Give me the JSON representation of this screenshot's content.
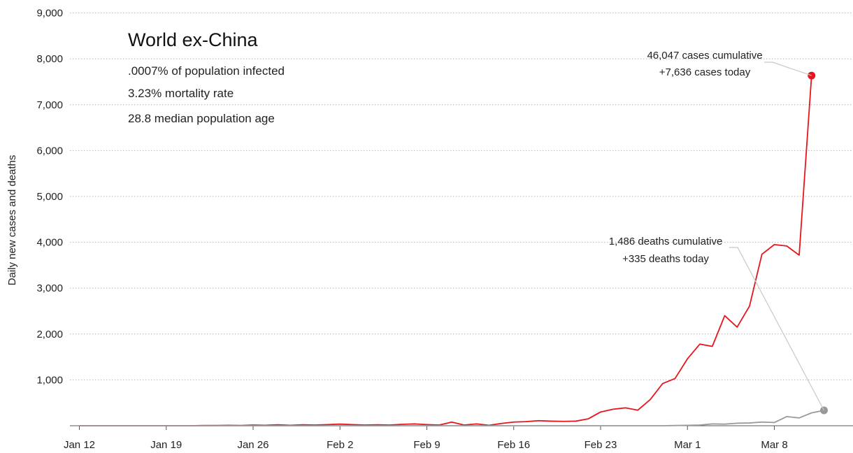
{
  "chart_data": {
    "type": "line",
    "title": "World ex-China",
    "subtitle_lines": [
      ".0007% of population infected",
      "3.23% mortality rate",
      "28.8 median population age"
    ],
    "xlabel": "",
    "ylabel": "Daily new cases and deaths",
    "ylim": [
      0,
      9000
    ],
    "y_ticks": [
      0,
      1000,
      2000,
      3000,
      4000,
      5000,
      6000,
      7000,
      8000,
      9000
    ],
    "y_tick_labels": [
      "",
      "1,000",
      "2,000",
      "3,000",
      "4,000",
      "5,000",
      "6,000",
      "7,000",
      "8,000",
      "9,000"
    ],
    "x_tick_labels": [
      "Jan 12",
      "Jan 19",
      "Jan 26",
      "Feb 2",
      "Feb 9",
      "Feb 16",
      "Feb 23",
      "Mar 1",
      "Mar 8"
    ],
    "x_tick_days": [
      0,
      7,
      14,
      21,
      28,
      35,
      42,
      49,
      56
    ],
    "grid": "horizontal dotted",
    "legend": "none",
    "series": [
      {
        "key": "cases",
        "color": "#e8141b",
        "values": [
          0,
          0,
          0,
          0,
          0,
          0,
          0,
          0,
          0,
          0,
          5,
          5,
          10,
          5,
          15,
          10,
          20,
          10,
          20,
          15,
          25,
          35,
          25,
          15,
          20,
          15,
          30,
          40,
          25,
          15,
          80,
          15,
          40,
          10,
          50,
          80,
          90,
          110,
          100,
          95,
          100,
          150,
          300,
          360,
          390,
          340,
          570,
          920,
          1030,
          1460,
          1780,
          1730,
          2400,
          2150,
          2610,
          3740,
          3950,
          3920,
          3720,
          7636
        ]
      },
      {
        "key": "deaths",
        "color": "#999999",
        "values": [
          0,
          0,
          0,
          0,
          0,
          0,
          0,
          0,
          0,
          0,
          0,
          0,
          0,
          0,
          0,
          0,
          0,
          0,
          0,
          0,
          0,
          0,
          0,
          0,
          0,
          0,
          0,
          0,
          0,
          0,
          0,
          0,
          0,
          0,
          0,
          0,
          0,
          0,
          0,
          0,
          0,
          0,
          0,
          0,
          0,
          0,
          0,
          0,
          5,
          10,
          15,
          40,
          35,
          55,
          60,
          80,
          70,
          200,
          170,
          280,
          335
        ]
      }
    ],
    "annotations": [
      {
        "key": "cases",
        "lines": [
          "46,047 cases cumulative",
          "+7,636 cases today"
        ]
      },
      {
        "key": "deaths",
        "lines": [
          "1,486 deaths cumulative",
          "+335 deaths today"
        ]
      }
    ]
  }
}
